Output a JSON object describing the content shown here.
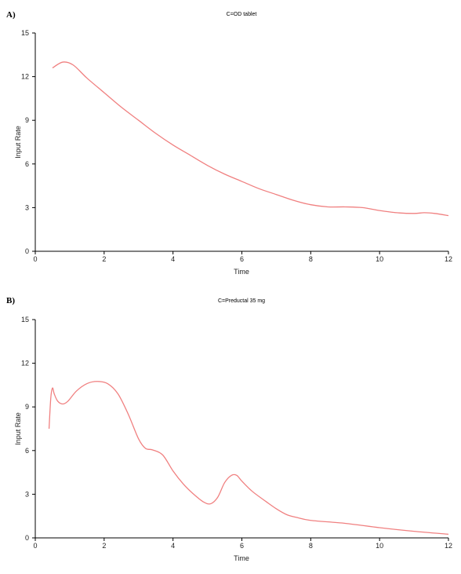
{
  "chart_data": [
    {
      "type": "line",
      "panel_label": "A)",
      "title": "C=OD tablet",
      "xlabel": "Time",
      "ylabel": "Input Rate",
      "xlim": [
        0,
        12
      ],
      "ylim": [
        0,
        15
      ],
      "x_ticks": [
        "0",
        "2",
        "4",
        "6",
        "8",
        "10",
        "12"
      ],
      "y_ticks": [
        "0",
        "3",
        "6",
        "9",
        "12",
        "15"
      ],
      "color": "#f08080",
      "series": [
        {
          "x": [
            0.5,
            0.8,
            1.1,
            1.5,
            2,
            2.5,
            3,
            3.5,
            4,
            4.5,
            5,
            5.5,
            6,
            6.5,
            7,
            7.5,
            8,
            8.5,
            9,
            9.5,
            10,
            10.5,
            11,
            11.3,
            11.6,
            12
          ],
          "y": [
            12.6,
            13.0,
            12.8,
            11.9,
            10.9,
            9.9,
            9.0,
            8.1,
            7.3,
            6.6,
            5.9,
            5.3,
            4.8,
            4.3,
            3.9,
            3.5,
            3.2,
            3.05,
            3.05,
            3.0,
            2.8,
            2.65,
            2.6,
            2.65,
            2.6,
            2.45
          ]
        }
      ]
    },
    {
      "type": "line",
      "panel_label": "B)",
      "title": "C=Preductal 35 mg",
      "xlabel": "Time",
      "ylabel": "Input Rate",
      "xlim": [
        0,
        12
      ],
      "ylim": [
        0,
        15
      ],
      "x_ticks": [
        "0",
        "2",
        "4",
        "6",
        "8",
        "10",
        "12"
      ],
      "y_ticks": [
        "0",
        "3",
        "6",
        "9",
        "12",
        "15"
      ],
      "color": "#f08080",
      "series": [
        {
          "x": [
            0.4,
            0.45,
            0.5,
            0.55,
            0.65,
            0.8,
            0.95,
            1.2,
            1.5,
            1.8,
            2.1,
            2.4,
            2.7,
            3.0,
            3.2,
            3.4,
            3.7,
            4.0,
            4.3,
            4.6,
            4.9,
            5.1,
            5.3,
            5.5,
            5.7,
            5.85,
            6.0,
            6.3,
            6.7,
            7.0,
            7.3,
            7.6,
            8.0,
            9.0,
            10.0,
            11.0,
            12.0
          ],
          "y": [
            7.5,
            9.6,
            10.3,
            9.9,
            9.4,
            9.2,
            9.4,
            10.1,
            10.6,
            10.75,
            10.6,
            9.9,
            8.5,
            6.8,
            6.15,
            6.05,
            5.7,
            4.6,
            3.7,
            3.0,
            2.45,
            2.35,
            2.8,
            3.8,
            4.3,
            4.3,
            3.9,
            3.2,
            2.5,
            2.0,
            1.6,
            1.4,
            1.2,
            1.0,
            0.7,
            0.45,
            0.25
          ]
        }
      ]
    }
  ]
}
